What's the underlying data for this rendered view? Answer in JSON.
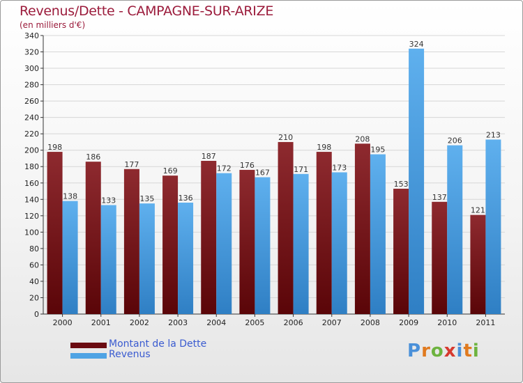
{
  "header": {
    "title": "Revenus/Dette - CAMPAGNE-SUR-ARIZE",
    "subtitle": "(en milliers d'€)"
  },
  "logo": {
    "text": "Proxiti",
    "letters": [
      "P",
      "r",
      "o",
      "x",
      "i",
      "t",
      "i"
    ],
    "colors": [
      "#4a90d9",
      "#e07a1f",
      "#6db33f",
      "#d63a2f",
      "#4a90d9",
      "#e07a1f",
      "#6db33f"
    ]
  },
  "chart_data": {
    "type": "bar",
    "title": "Revenus/Dette - CAMPAGNE-SUR-ARIZE",
    "subtitle": "(en milliers d'€)",
    "categories": [
      "2000",
      "2001",
      "2002",
      "2003",
      "2004",
      "2005",
      "2006",
      "2007",
      "2008",
      "2009",
      "2010",
      "2011"
    ],
    "series": [
      {
        "name": "Montant de la Dette",
        "values": [
          198,
          186,
          177,
          169,
          187,
          176,
          210,
          198,
          208,
          153,
          137,
          121
        ],
        "color": "#7a1018"
      },
      {
        "name": "Revenus",
        "values": [
          138,
          133,
          135,
          136,
          172,
          167,
          171,
          173,
          195,
          324,
          206,
          213
        ],
        "color": "#4ea3e4"
      }
    ],
    "ylim": [
      0,
      340
    ],
    "yticks": [
      0,
      20,
      40,
      60,
      80,
      100,
      120,
      140,
      160,
      180,
      200,
      220,
      240,
      260,
      280,
      300,
      320,
      340
    ],
    "grid": true,
    "legend_position": "bottom-left",
    "data_labels": true
  }
}
